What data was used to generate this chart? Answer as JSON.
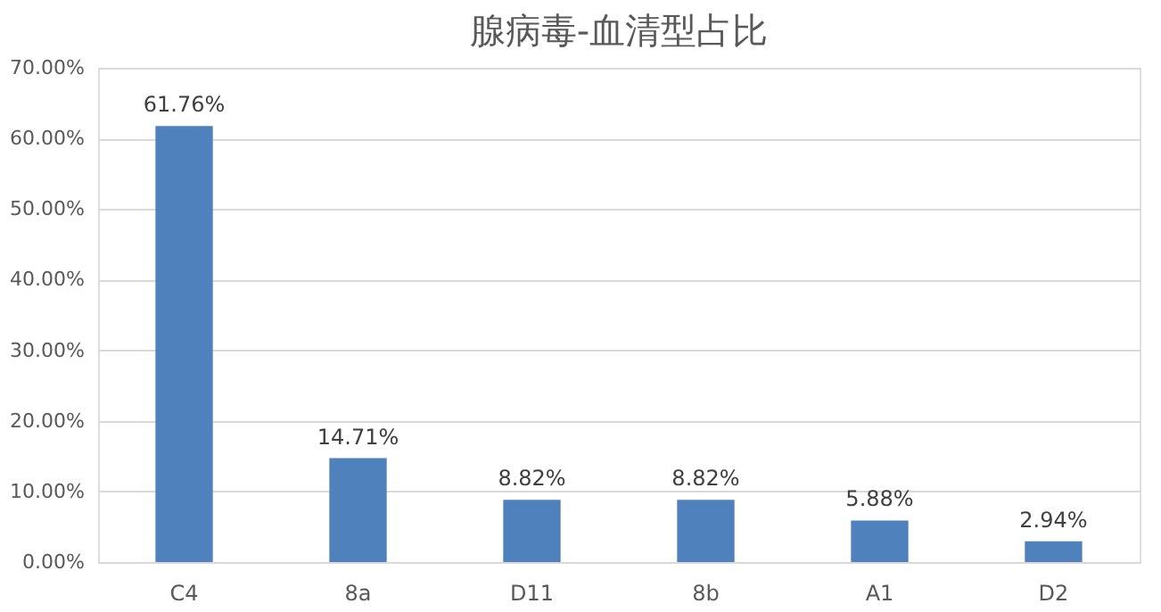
{
  "chart_data": {
    "type": "bar",
    "title": "腺病毒-血清型占比",
    "categories": [
      "C4",
      "8a",
      "D11",
      "8b",
      "A1",
      "D2"
    ],
    "values": [
      61.76,
      14.71,
      8.82,
      8.82,
      5.88,
      2.94
    ],
    "value_labels": [
      "61.76%",
      "14.71%",
      "8.82%",
      "8.82%",
      "5.88%",
      "2.94%"
    ],
    "color": "#4f81bd",
    "ylim": [
      0,
      70
    ],
    "yticks": [
      {
        "value": 0,
        "label": "0.00%"
      },
      {
        "value": 10,
        "label": "10.00%"
      },
      {
        "value": 20,
        "label": "20.00%"
      },
      {
        "value": 30,
        "label": "30.00%"
      },
      {
        "value": 40,
        "label": "40.00%"
      },
      {
        "value": 50,
        "label": "50.00%"
      },
      {
        "value": 60,
        "label": "60.00%"
      },
      {
        "value": 70,
        "label": "70.00%"
      }
    ],
    "grid": "y"
  }
}
